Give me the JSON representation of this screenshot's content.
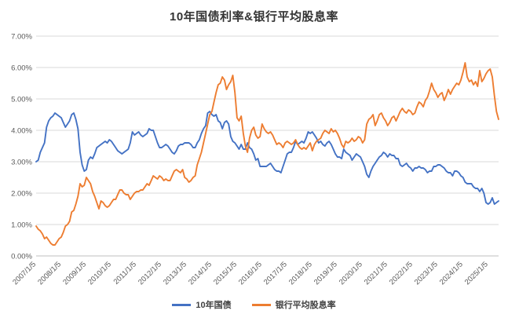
{
  "chart_data": {
    "type": "line",
    "title": "10年国债利率&银行平均股息率",
    "ylabel": "",
    "xlabel": "",
    "ylim": [
      0,
      7
    ],
    "y_tick_step": 1,
    "y_tick_format": "percent_2dp",
    "grid": "horizontal",
    "legend_position": "bottom",
    "x_unit": "month",
    "x_tick_every": 12,
    "x_tick_labels": [
      "2007/1/5",
      "2008/1/5",
      "2009/1/5",
      "2010/1/5",
      "2011/1/5",
      "2012/1/5",
      "2013/1/5",
      "2014/1/5",
      "2015/1/5",
      "2016/1/5",
      "2017/1/5",
      "2018/1/5",
      "2019/1/5",
      "2020/1/5",
      "2021/1/5",
      "2022/1/5",
      "2023/1/5",
      "2024/1/5",
      "2025/1/5"
    ],
    "series": [
      {
        "name": "10年国债",
        "id": "bond-yield-line",
        "color": "#4472C4",
        "values": [
          3.0,
          3.05,
          3.3,
          3.45,
          3.6,
          4.1,
          4.3,
          4.4,
          4.45,
          4.55,
          4.5,
          4.45,
          4.4,
          4.25,
          4.1,
          4.2,
          4.3,
          4.5,
          4.55,
          4.35,
          4.05,
          3.3,
          2.9,
          2.7,
          2.75,
          3.05,
          3.15,
          3.1,
          3.25,
          3.45,
          3.5,
          3.55,
          3.6,
          3.65,
          3.6,
          3.7,
          3.65,
          3.55,
          3.45,
          3.35,
          3.3,
          3.25,
          3.3,
          3.35,
          3.4,
          3.6,
          3.95,
          3.85,
          3.9,
          3.95,
          3.85,
          3.8,
          3.85,
          3.9,
          4.05,
          4.0,
          4.0,
          3.8,
          3.6,
          3.45,
          3.45,
          3.5,
          3.55,
          3.5,
          3.4,
          3.3,
          3.25,
          3.35,
          3.5,
          3.55,
          3.55,
          3.6,
          3.6,
          3.6,
          3.55,
          3.45,
          3.45,
          3.6,
          3.7,
          3.9,
          4.05,
          4.15,
          4.55,
          4.6,
          4.5,
          4.45,
          4.5,
          4.3,
          4.25,
          4.05,
          4.25,
          4.3,
          4.2,
          3.8,
          3.65,
          3.6,
          3.5,
          3.4,
          3.55,
          3.4,
          3.4,
          3.6,
          3.45,
          3.4,
          3.25,
          3.05,
          3.1,
          2.85,
          2.85,
          2.85,
          2.85,
          2.9,
          2.95,
          2.85,
          2.75,
          2.7,
          2.7,
          2.65,
          2.85,
          3.05,
          3.25,
          3.3,
          3.3,
          3.45,
          3.65,
          3.55,
          3.6,
          3.65,
          3.6,
          3.75,
          3.95,
          3.9,
          3.95,
          3.85,
          3.75,
          3.6,
          3.65,
          3.55,
          3.5,
          3.6,
          3.65,
          3.55,
          3.4,
          3.25,
          3.15,
          3.15,
          3.1,
          3.4,
          3.3,
          3.25,
          3.2,
          3.05,
          3.15,
          3.25,
          3.2,
          3.15,
          3.0,
          2.85,
          2.6,
          2.5,
          2.7,
          2.85,
          2.95,
          3.05,
          3.15,
          3.2,
          3.3,
          3.25,
          3.15,
          3.25,
          3.2,
          3.2,
          3.1,
          3.1,
          2.9,
          2.85,
          2.9,
          2.95,
          2.85,
          2.8,
          2.7,
          2.8,
          2.8,
          2.85,
          2.8,
          2.8,
          2.75,
          2.65,
          2.7,
          2.7,
          2.85,
          2.85,
          2.9,
          2.9,
          2.85,
          2.8,
          2.7,
          2.65,
          2.65,
          2.55,
          2.7,
          2.7,
          2.65,
          2.55,
          2.5,
          2.35,
          2.3,
          2.3,
          2.3,
          2.2,
          2.15,
          2.15,
          2.05,
          2.15,
          2.0,
          1.7,
          1.65,
          1.7,
          1.85,
          1.65,
          1.7,
          1.75
        ]
      },
      {
        "name": "银行平均股息率",
        "id": "dividend-yield-line",
        "color": "#ED7D31",
        "values": [
          0.95,
          0.85,
          0.8,
          0.7,
          0.55,
          0.6,
          0.5,
          0.4,
          0.35,
          0.35,
          0.45,
          0.55,
          0.6,
          0.75,
          0.95,
          1.0,
          1.1,
          1.4,
          1.45,
          1.65,
          1.9,
          2.3,
          2.2,
          2.25,
          2.5,
          2.4,
          2.3,
          2.05,
          1.9,
          1.7,
          1.5,
          1.75,
          1.7,
          1.6,
          1.55,
          1.6,
          1.7,
          1.8,
          1.8,
          1.95,
          2.1,
          2.1,
          2.0,
          1.95,
          1.95,
          1.8,
          1.9,
          2.0,
          2.05,
          2.05,
          2.1,
          2.1,
          2.2,
          2.3,
          2.25,
          2.4,
          2.55,
          2.5,
          2.45,
          2.55,
          2.5,
          2.4,
          2.45,
          2.4,
          2.4,
          2.55,
          2.7,
          2.75,
          2.7,
          2.65,
          2.75,
          2.5,
          2.45,
          2.35,
          2.4,
          2.5,
          2.55,
          2.9,
          3.1,
          3.3,
          3.6,
          3.9,
          4.2,
          4.5,
          4.6,
          4.9,
          5.2,
          5.45,
          5.5,
          5.7,
          5.6,
          5.3,
          5.45,
          5.55,
          5.75,
          5.2,
          4.4,
          4.3,
          4.45,
          3.9,
          3.5,
          3.3,
          3.75,
          4.0,
          4.1,
          3.85,
          3.75,
          3.8,
          4.2,
          4.05,
          3.95,
          3.9,
          3.95,
          3.85,
          3.7,
          3.55,
          3.6,
          3.55,
          3.45,
          3.6,
          3.65,
          3.6,
          3.55,
          3.6,
          3.7,
          3.55,
          3.45,
          3.4,
          3.45,
          3.4,
          3.5,
          3.6,
          3.35,
          3.55,
          3.65,
          3.7,
          3.75,
          3.9,
          4.0,
          3.95,
          3.9,
          4.05,
          3.95,
          4.0,
          3.9,
          3.75,
          3.55,
          3.45,
          3.65,
          3.6,
          3.65,
          3.75,
          3.65,
          3.7,
          3.8,
          3.75,
          3.6,
          3.7,
          4.2,
          4.35,
          4.4,
          4.5,
          4.15,
          4.3,
          4.5,
          4.55,
          4.4,
          4.3,
          4.15,
          4.25,
          4.4,
          4.45,
          4.3,
          4.45,
          4.6,
          4.7,
          4.6,
          4.55,
          4.65,
          4.6,
          4.5,
          4.55,
          4.75,
          4.9,
          4.85,
          4.75,
          4.95,
          5.05,
          5.25,
          5.5,
          5.3,
          5.2,
          5.05,
          5.15,
          5.2,
          4.95,
          5.1,
          5.3,
          5.15,
          5.3,
          5.4,
          5.5,
          5.45,
          5.6,
          5.85,
          6.15,
          5.7,
          5.55,
          5.6,
          5.45,
          5.55,
          5.4,
          5.9,
          5.55,
          5.65,
          5.8,
          5.9,
          5.95,
          5.7,
          5.1,
          4.6,
          4.35
        ]
      }
    ]
  },
  "colors": {
    "bond_blue": "#4472C4",
    "dividend_orange": "#ED7D31",
    "gridline": "#D9D9D9",
    "axis_text": "#595959",
    "title_text": "#333333"
  }
}
